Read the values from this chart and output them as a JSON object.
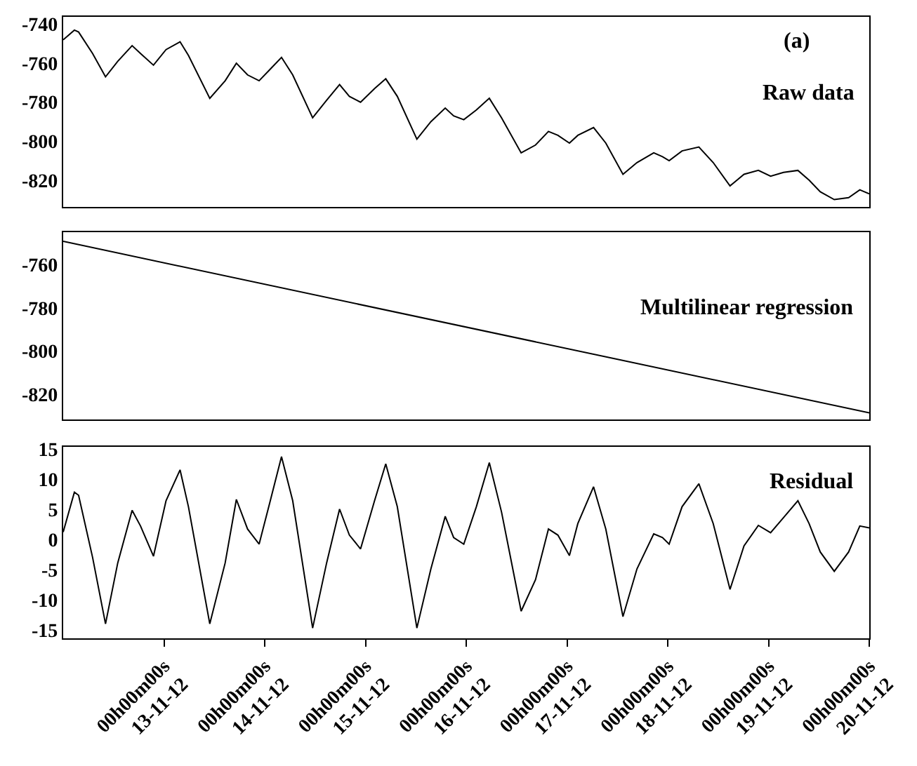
{
  "chart_data": [
    {
      "type": "line",
      "x": [
        "--11-12T00:00",
        "--11-12T02:40",
        "--11-12T03:40",
        "--11-12T07:00",
        "--11-12T10:05",
        "--11-12T13:00",
        "--11-12T16:25",
        "--11-12T18:25",
        "--11-12T21:30",
        "--11-13T00:30",
        "--11-13T03:50",
        "--11-13T05:50",
        "--11-13T10:55",
        "--11-13T14:35",
        "--11-13T17:15",
        "--11-13T19:55",
        "--11-13T22:40",
        "--11-14T01:20",
        "--11-14T04:00",
        "--11-14T06:40",
        "--11-14T11:25",
        "--11-14T14:45",
        "--11-14T17:50",
        "--11-14T20:10",
        "--11-14T22:50",
        "--11-15T02:10",
        "--11-15T04:50",
        "--11-15T07:35",
        "--11-15T12:15",
        "--11-15T15:35",
        "--11-15T19:00",
        "--11-15T21:00",
        "--11-15T23:25",
        "--11-16T02:25",
        "--11-16T05:30",
        "--11-16T08:25",
        "--11-16T13:05",
        "--11-16T16:30",
        "--11-16T19:35",
        "--11-16T21:50",
        "--11-17T00:35",
        "--11-17T02:35",
        "--11-17T06:20",
        "--11-17T09:15",
        "--11-17T13:20",
        "--11-17T16:40",
        "--11-17T20:40",
        "--11-17T22:45",
        "--11-18T00:20",
        "--11-18T03:25",
        "--11-18T07:25",
        "--11-18T10:50",
        "--11-18T14:50",
        "--11-18T18:10",
        "--11-18T21:35",
        "--11-19T00:30",
        "--11-19T03:35",
        "--11-19T07:00",
        "--11-19T09:40",
        "--11-19T12:20",
        "--11-19T15:40",
        "--11-19T19:05",
        "--11-19T21:45",
        "--11-20T00:00"
      ],
      "series": [
        {
          "color": "#000000",
          "values": [
            -748,
            -743,
            -744,
            -755,
            -767,
            -759,
            -751,
            -755,
            -761,
            -753,
            -749,
            -756,
            -778,
            -769,
            -760,
            -766,
            -769,
            -763,
            -757,
            -766,
            -788,
            -779,
            -771,
            -777,
            -780,
            -773,
            -768,
            -777,
            -799,
            -790,
            -783,
            -787,
            -789,
            -784,
            -778,
            -788,
            -806,
            -802,
            -795,
            -797,
            -801,
            -797,
            -793,
            -801,
            -817,
            -811,
            -806,
            -808,
            -810,
            -805,
            -803,
            -811,
            -823,
            -817,
            -815,
            -818,
            -816,
            -815,
            -820,
            -826,
            -830,
            -829,
            -825,
            -827
          ]
        }
      ],
      "xlim": [
        "--11-12T00:00",
        "--11-20T00:00"
      ],
      "ylim": [
        -833.8,
        -736.2
      ],
      "yticks": [
        -740,
        -760,
        -780,
        -800,
        -820
      ],
      "tick_labels": "y",
      "annotations": [
        "(a)",
        "Raw data"
      ]
    },
    {
      "type": "line",
      "x": [
        "--11-12T00:00",
        "--11-20T00:00"
      ],
      "series": [
        {
          "color": "#000000",
          "values": [
            -749.3,
            -828.5
          ]
        }
      ],
      "xlim": [
        "--11-12T00:00",
        "--11-20T00:00"
      ],
      "ylim": [
        -831.6,
        -745.2
      ],
      "yticks": [
        -760,
        -780,
        -800,
        -820
      ],
      "tick_labels": "y",
      "annotations": [
        "Multilinear regression"
      ]
    },
    {
      "type": "line",
      "x": [
        "--11-12T00:00",
        "--11-12T02:40",
        "--11-12T03:40",
        "--11-12T07:00",
        "--11-12T10:05",
        "--11-12T13:00",
        "--11-12T16:25",
        "--11-12T18:25",
        "--11-12T21:30",
        "--11-13T00:30",
        "--11-13T03:50",
        "--11-13T05:50",
        "--11-13T10:55",
        "--11-13T14:35",
        "--11-13T17:15",
        "--11-13T19:55",
        "--11-13T22:40",
        "--11-14T01:20",
        "--11-14T04:00",
        "--11-14T06:40",
        "--11-14T11:25",
        "--11-14T14:45",
        "--11-14T17:50",
        "--11-14T20:10",
        "--11-14T22:50",
        "--11-15T02:10",
        "--11-15T04:50",
        "--11-15T07:35",
        "--11-15T12:15",
        "--11-15T15:35",
        "--11-15T19:00",
        "--11-15T21:00",
        "--11-15T23:25",
        "--11-16T02:25",
        "--11-16T05:30",
        "--11-16T08:25",
        "--11-16T13:05",
        "--11-16T16:30",
        "--11-16T19:35",
        "--11-16T21:50",
        "--11-17T00:35",
        "--11-17T02:35",
        "--11-17T06:20",
        "--11-17T09:15",
        "--11-17T13:20",
        "--11-17T16:40",
        "--11-17T20:40",
        "--11-17T22:45",
        "--11-18T00:20",
        "--11-18T03:25",
        "--11-18T07:25",
        "--11-18T10:50",
        "--11-18T14:50",
        "--11-18T18:10",
        "--11-18T21:35",
        "--11-19T00:30",
        "--11-19T03:35",
        "--11-19T07:00",
        "--11-19T09:40",
        "--11-19T12:20",
        "--11-19T15:40",
        "--11-19T19:05",
        "--11-19T21:45",
        "--11-20T00:00"
      ],
      "series": [
        {
          "color": "#000000",
          "values": [
            1.2,
            7.8,
            7.3,
            -3.0,
            -14.0,
            -3.9,
            4.8,
            2.2,
            -2.8,
            6.4,
            11.5,
            5.4,
            -14.0,
            -3.9,
            6.6,
            1.7,
            -0.8,
            6.4,
            13.7,
            6.4,
            -14.7,
            -3.9,
            5.0,
            0.7,
            -1.6,
            6.4,
            12.5,
            5.4,
            -14.7,
            -4.9,
            3.8,
            0.3,
            -0.8,
            5.4,
            12.7,
            4.5,
            -11.9,
            -6.7,
            1.7,
            0.7,
            -2.7,
            2.6,
            8.7,
            1.7,
            -12.8,
            -4.9,
            0.9,
            0.3,
            -0.8,
            5.4,
            9.2,
            2.6,
            -8.3,
            -1.1,
            2.3,
            1.1,
            3.6,
            6.4,
            2.6,
            -2.1,
            -5.3,
            -2.1,
            2.2,
            1.9
          ]
        }
      ],
      "xlim": [
        "--11-12T00:00",
        "--11-20T00:00"
      ],
      "ylim": [
        -16.4,
        15.3
      ],
      "yticks": [
        15,
        10,
        5,
        0,
        -5,
        -10,
        -15
      ],
      "xticks": [
        {
          "value": "--11-13T00:00",
          "label": "00h00m00s\n13-11-12"
        },
        {
          "value": "--11-14T00:00",
          "label": "00h00m00s\n14-11-12"
        },
        {
          "value": "--11-15T00:00",
          "label": "00h00m00s\n15-11-12"
        },
        {
          "value": "--11-16T00:00",
          "label": "00h00m00s\n16-11-12"
        },
        {
          "value": "--11-17T00:00",
          "label": "00h00m00s\n17-11-12"
        },
        {
          "value": "--11-18T00:00",
          "label": "00h00m00s\n18-11-12"
        },
        {
          "value": "--11-19T00:00",
          "label": "00h00m00s\n19-11-12"
        },
        {
          "value": "--11-20T00:00",
          "label": "00h00m00s\n20-11-12"
        }
      ],
      "annotations": [
        "Residual"
      ]
    }
  ]
}
